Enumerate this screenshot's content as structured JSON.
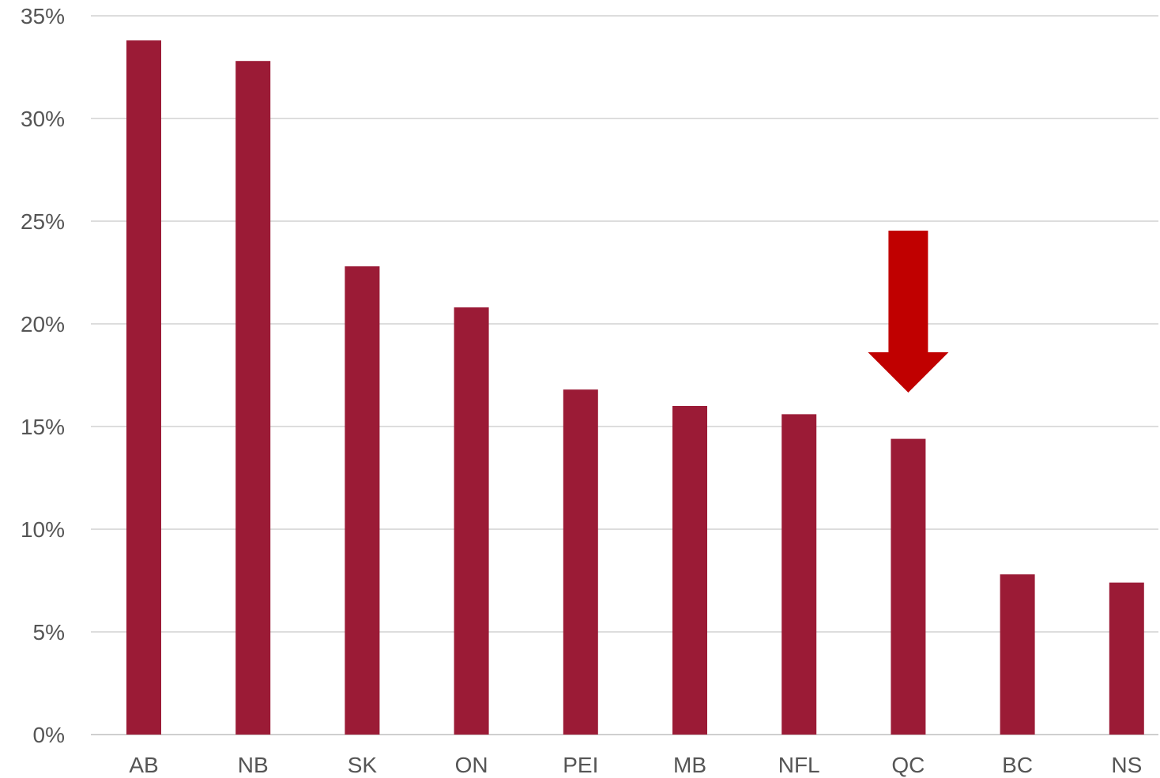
{
  "chart_data": {
    "type": "bar",
    "categories": [
      "AB",
      "NB",
      "SK",
      "ON",
      "PEI",
      "MB",
      "NFL",
      "QC",
      "BC",
      "NS"
    ],
    "values": [
      33.8,
      32.8,
      22.8,
      20.8,
      16.8,
      16.0,
      15.6,
      14.4,
      7.8,
      7.4
    ],
    "title": "",
    "xlabel": "",
    "ylabel": "",
    "ylim": [
      0,
      35
    ],
    "yticks": [
      0,
      5,
      10,
      15,
      20,
      25,
      30,
      35
    ],
    "ytick_labels": [
      "0%",
      "5%",
      "10%",
      "15%",
      "20%",
      "25%",
      "30%",
      "35%"
    ],
    "grid": true,
    "bar_color": "#9b1b36",
    "grid_color": "#dddddd",
    "annotation": {
      "type": "down-arrow",
      "category": "QC",
      "color": "#c00000"
    }
  }
}
